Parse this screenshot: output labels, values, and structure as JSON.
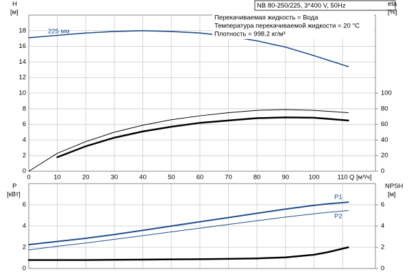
{
  "chart_data": [
    {
      "type": "line",
      "title": "NB 80-250/225, 3*400 V, 50Hz",
      "annotations": [
        "Перекачиваемая жидкость = Вода",
        "Температура перекачиваемой жидкости = 20 °C",
        "Плотность = 998.2 кг/м³"
      ],
      "ylabel": "H",
      "ylabel_unit": "[м]",
      "y2label": "eta",
      "y2label_unit": "[%]",
      "xlabel": "Q [м³/ч]",
      "x": [
        0,
        10,
        20,
        30,
        40,
        50,
        60,
        70,
        80,
        90,
        100,
        112
      ],
      "xlim": [
        0,
        121.5
      ],
      "xticks": [
        0,
        10,
        20,
        30,
        40,
        50,
        60,
        70,
        80,
        90,
        100,
        110
      ],
      "ylim": [
        0,
        20
      ],
      "yticks": [
        0,
        2,
        4,
        6,
        8,
        10,
        12,
        14,
        16,
        18
      ],
      "y2lim": [
        0,
        200
      ],
      "y2ticks": [
        0,
        20,
        40,
        60,
        80,
        100
      ],
      "grid": true,
      "series": [
        {
          "name": "225 мм",
          "color": "#1f4e8c",
          "width": 1.6,
          "values": [
            17.1,
            17.4,
            17.7,
            17.9,
            18.0,
            17.9,
            17.7,
            17.3,
            16.7,
            15.9,
            14.8,
            13.4
          ]
        },
        {
          "axis": "y2",
          "color": "#000000",
          "width": 1,
          "values": [
            0,
            23,
            38,
            50,
            59,
            66,
            71,
            75,
            78,
            79,
            78,
            75
          ]
        },
        {
          "axis": "y2",
          "color": "#000000",
          "width": 2.5,
          "values": [
            null,
            18,
            32,
            43,
            51,
            57,
            62,
            65,
            68,
            69,
            68.5,
            65
          ]
        }
      ]
    },
    {
      "type": "line",
      "ylabel": "P",
      "ylabel_unit": "[кВт]",
      "y2label": "NPSH",
      "y2label_unit": "[м]",
      "x": [
        0,
        10,
        20,
        30,
        40,
        50,
        60,
        70,
        80,
        90,
        100,
        105,
        112
      ],
      "xlim": [
        0,
        121.5
      ],
      "ylim": [
        0,
        8
      ],
      "yticks": [
        0,
        2,
        4,
        6
      ],
      "y2lim": [
        0,
        8
      ],
      "y2ticks": [
        0,
        2,
        4,
        6
      ],
      "grid": true,
      "series": [
        {
          "name": "P1",
          "color": "#1f4e8c",
          "width": 2,
          "values": [
            2.25,
            2.55,
            2.85,
            3.2,
            3.6,
            4.0,
            4.4,
            4.8,
            5.2,
            5.6,
            5.95,
            6.1,
            6.25
          ]
        },
        {
          "name": "P2",
          "color": "#1f4e8c",
          "width": 1,
          "values": [
            1.75,
            2.1,
            2.4,
            2.75,
            3.1,
            3.45,
            3.8,
            4.15,
            4.5,
            4.85,
            5.15,
            5.3,
            5.45
          ]
        },
        {
          "axis": "y2",
          "color": "#000000",
          "width": 2.5,
          "values": [
            0.8,
            0.8,
            0.8,
            0.82,
            0.84,
            0.86,
            0.88,
            0.91,
            0.95,
            1.05,
            1.3,
            1.55,
            2.0
          ]
        }
      ]
    }
  ]
}
